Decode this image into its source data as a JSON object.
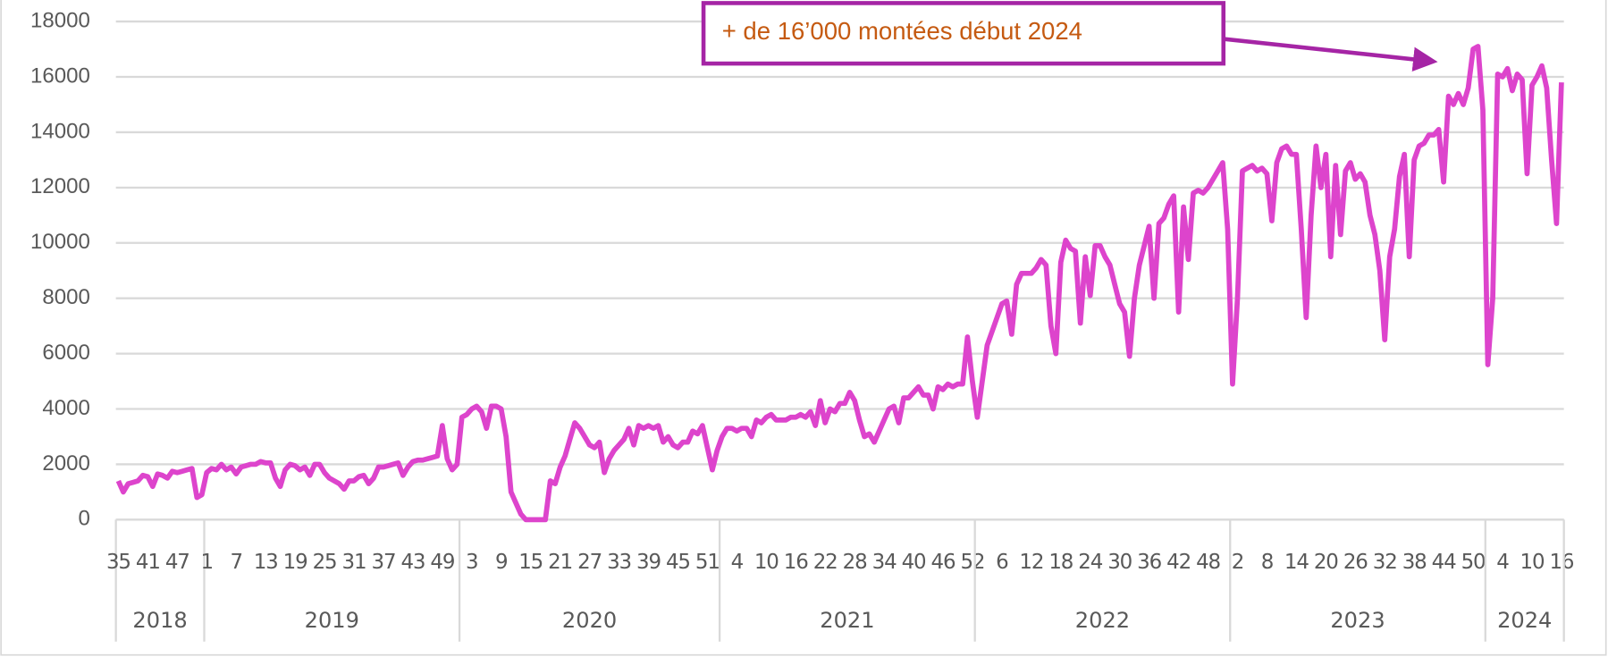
{
  "chart_data": {
    "type": "line",
    "annotation": "+ de 16’000 montées début 2024",
    "groups": [
      {
        "label": "2018",
        "categories": [
          "35",
          null,
          null,
          null,
          null,
          null,
          "41",
          null,
          null,
          null,
          null,
          null,
          "47",
          null,
          null,
          null,
          null,
          null
        ]
      },
      {
        "label": "2019",
        "categories": [
          "1",
          null,
          null,
          null,
          null,
          null,
          "7",
          null,
          null,
          null,
          null,
          null,
          "13",
          null,
          null,
          null,
          null,
          null,
          "19",
          null,
          null,
          null,
          null,
          null,
          "25",
          null,
          null,
          null,
          null,
          null,
          "31",
          null,
          null,
          null,
          null,
          null,
          "37",
          null,
          null,
          null,
          null,
          null,
          "43",
          null,
          null,
          null,
          null,
          null,
          "49",
          null,
          null,
          null
        ]
      },
      {
        "label": "2020",
        "categories": [
          null,
          null,
          "3",
          null,
          null,
          null,
          null,
          null,
          "9",
          null,
          null,
          null,
          null,
          null,
          "15",
          null,
          null,
          null,
          null,
          null,
          "21",
          null,
          null,
          null,
          null,
          null,
          "27",
          null,
          null,
          null,
          null,
          null,
          "33",
          null,
          null,
          null,
          null,
          null,
          "39",
          null,
          null,
          null,
          null,
          null,
          "45",
          null,
          null,
          null,
          null,
          null,
          "51",
          null,
          null
        ]
      },
      {
        "label": "2021",
        "categories": [
          null,
          null,
          null,
          "4",
          null,
          null,
          null,
          null,
          null,
          "10",
          null,
          null,
          null,
          null,
          null,
          "16",
          null,
          null,
          null,
          null,
          null,
          "22",
          null,
          null,
          null,
          null,
          null,
          "28",
          null,
          null,
          null,
          null,
          null,
          "34",
          null,
          null,
          null,
          null,
          null,
          "40",
          null,
          null,
          null,
          null,
          null,
          "46",
          null,
          null,
          null,
          null,
          null,
          "52"
        ]
      },
      {
        "label": "2022",
        "categories": [
          null,
          null,
          null,
          null,
          null,
          "6",
          null,
          null,
          null,
          null,
          null,
          "12",
          null,
          null,
          null,
          null,
          null,
          "18",
          null,
          null,
          null,
          null,
          null,
          "24",
          null,
          null,
          null,
          null,
          null,
          "30",
          null,
          null,
          null,
          null,
          null,
          "36",
          null,
          null,
          null,
          null,
          null,
          "42",
          null,
          null,
          null,
          null,
          null,
          "48",
          null,
          null,
          null,
          null
        ]
      },
      {
        "label": "2023",
        "categories": [
          null,
          "2",
          null,
          null,
          null,
          null,
          null,
          "8",
          null,
          null,
          null,
          null,
          null,
          "14",
          null,
          null,
          null,
          null,
          null,
          "20",
          null,
          null,
          null,
          null,
          null,
          "26",
          null,
          null,
          null,
          null,
          null,
          "32",
          null,
          null,
          null,
          null,
          null,
          "38",
          null,
          null,
          null,
          null,
          null,
          "44",
          null,
          null,
          null,
          null,
          null,
          "50",
          null,
          null
        ]
      },
      {
        "label": "2024",
        "categories": [
          null,
          null,
          null,
          "4",
          null,
          null,
          null,
          null,
          null,
          "10",
          null,
          null,
          null,
          null,
          null,
          "16"
        ]
      }
    ],
    "series": [
      {
        "color": "#dd44cc",
        "values": [
          1400,
          1000,
          1300,
          1350,
          1400,
          1600,
          1550,
          1200,
          1650,
          1600,
          1500,
          1750,
          1700,
          1750,
          1800,
          1850,
          800,
          900,
          1700,
          1850,
          1800,
          2000,
          1800,
          1900,
          1650,
          1900,
          1950,
          2000,
          2000,
          2100,
          2050,
          2050,
          1500,
          1200,
          1800,
          2000,
          1950,
          1800,
          1900,
          1600,
          2000,
          2000,
          1700,
          1500,
          1400,
          1300,
          1100,
          1400,
          1400,
          1550,
          1600,
          1300,
          1500,
          1900,
          1900,
          1950,
          2000,
          2050,
          1600,
          1900,
          2100,
          2150,
          2150,
          2200,
          2250,
          2300,
          3400,
          2200,
          1800,
          2000,
          3700,
          3800,
          4000,
          4100,
          3900,
          3300,
          4100,
          4100,
          4000,
          3000,
          1000,
          600,
          200,
          0,
          0,
          0,
          0,
          0,
          1400,
          1300,
          1900,
          2300,
          2900,
          3500,
          3300,
          3000,
          2700,
          2600,
          2800,
          1700,
          2200,
          2500,
          2700,
          2900,
          3300,
          2700,
          3400,
          3300,
          3400,
          3300,
          3400,
          2800,
          3000,
          2700,
          2600,
          2800,
          2800,
          3200,
          3100,
          3400,
          2600,
          1800,
          2500,
          3000,
          3300,
          3300,
          3200,
          3300,
          3300,
          3000,
          3600,
          3500,
          3700,
          3800,
          3600,
          3600,
          3600,
          3700,
          3700,
          3800,
          3700,
          3900,
          3400,
          4300,
          3500,
          4000,
          3900,
          4200,
          4200,
          4600,
          4300,
          3600,
          3000,
          3100,
          2800,
          3200,
          3600,
          4000,
          4100,
          3500,
          4400,
          4400,
          4600,
          4800,
          4500,
          4500,
          4000,
          4800,
          4700,
          4900,
          4800,
          4900,
          4900,
          6600,
          5000,
          3700,
          5000,
          6300,
          6800,
          7300,
          7800,
          7900,
          6700,
          8500,
          8900,
          8900,
          8900,
          9100,
          9400,
          9200,
          7000,
          6000,
          9300,
          10100,
          9800,
          9700,
          7100,
          9500,
          8100,
          9900,
          9900,
          9500,
          9200,
          8500,
          7800,
          7500,
          5900,
          8000,
          9200,
          9900,
          10600,
          8000,
          10700,
          10900,
          11400,
          11700,
          7500,
          11300,
          9400,
          11800,
          11900,
          11800,
          12000,
          12300,
          12600,
          12900,
          10500,
          4900,
          8000,
          12600,
          12700,
          12800,
          12600,
          12700,
          12500,
          10800,
          12900,
          13400,
          13500,
          13200,
          13200,
          10500,
          7300,
          11000,
          13500,
          12000,
          13200,
          9500,
          12800,
          10300,
          12600,
          12900,
          12300,
          12500,
          12200,
          11000,
          10300,
          9000,
          6500,
          9500,
          10500,
          12400,
          13200,
          9500,
          13000,
          13500,
          13600,
          13900,
          13900,
          14100,
          12200,
          15300,
          15000,
          15400,
          15000,
          15600,
          17000,
          17100,
          14800,
          5600,
          8000,
          16100,
          16000,
          16300,
          15500,
          16100,
          15900,
          12500,
          15700,
          16000,
          16400,
          15600,
          13000,
          10700,
          15800
        ]
      }
    ],
    "ylim": [
      0,
      18000
    ],
    "yticks": [
      0,
      2000,
      4000,
      6000,
      8000,
      10000,
      12000,
      14000,
      16000,
      18000
    ],
    "grid": true,
    "annotation_color": "#c55a11",
    "annotation_border": "#a525a5"
  }
}
